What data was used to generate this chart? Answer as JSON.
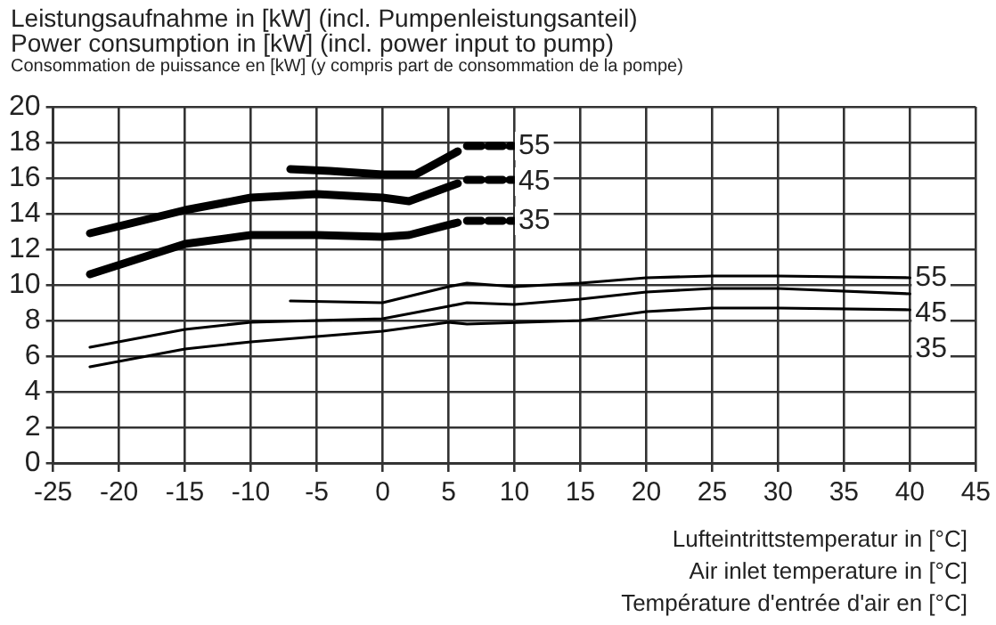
{
  "chart_data": {
    "type": "line",
    "ylabel": "Leistungsaufnahme in [kW] (incl. Pumpenleistungsanteil)\nPower consumption in [kW] (incl. power input to pump)\nConsommation de puissance en [kW] (y compris part de consommation de la pompe)",
    "xlabel": "Lufteintrittstemperatur in [°C]\nAir inlet temperature in [°C]\nTempérature d'entrée d'air en [°C]",
    "xlim": [
      -25,
      45
    ],
    "xticks": [
      -25,
      -20,
      -15,
      -10,
      -5,
      0,
      5,
      10,
      15,
      20,
      25,
      30,
      35,
      40,
      45
    ],
    "ylim": [
      0,
      20
    ],
    "yticks": [
      0,
      2,
      4,
      6,
      8,
      10,
      12,
      14,
      16,
      18,
      20
    ],
    "grid": true,
    "legend": false,
    "marker": "none",
    "line_style": "solid",
    "series": [
      {
        "color": "#000000",
        "x": [
          -7,
          -4,
          0,
          2.5,
          4,
          5.7
        ],
        "values": [
          16.5,
          16.4,
          16.2,
          16.2,
          16.8,
          17.5
        ]
      },
      {
        "color": "#000000",
        "x": [
          -22.2,
          -15,
          -10,
          -5,
          0,
          2,
          5.7
        ],
        "values": [
          12.9,
          14.2,
          14.9,
          15.1,
          14.9,
          14.7,
          15.7
        ]
      },
      {
        "color": "#000000",
        "x": [
          -22.2,
          -15,
          -10,
          -5,
          0,
          2,
          5.7
        ],
        "values": [
          10.6,
          12.3,
          12.8,
          12.8,
          12.7,
          12.8,
          13.5
        ]
      },
      {
        "name": "55",
        "color": "#000000",
        "line_style": "dashed",
        "x": [
          6.4,
          9.9
        ],
        "values": [
          17.8,
          17.8
        ]
      },
      {
        "name": "45",
        "color": "#000000",
        "line_style": "dashed",
        "x": [
          6.4,
          9.9
        ],
        "values": [
          15.9,
          15.9
        ]
      },
      {
        "name": "35",
        "color": "#000000",
        "line_style": "dashed",
        "x": [
          6.4,
          9.9
        ],
        "values": [
          13.6,
          13.6
        ]
      },
      {
        "name": "55",
        "color": "#000000",
        "x": [
          -7,
          0,
          5,
          6.4,
          10,
          15,
          20,
          25,
          30,
          40
        ],
        "values": [
          9.1,
          9.0,
          9.9,
          10.1,
          9.9,
          10.1,
          10.4,
          10.5,
          10.5,
          10.4
        ]
      },
      {
        "name": "45",
        "color": "#000000",
        "x": [
          -22.2,
          -15,
          -10,
          -5,
          0,
          5,
          6.4,
          10,
          15,
          20,
          25,
          30,
          40
        ],
        "values": [
          6.5,
          7.5,
          7.9,
          8.0,
          8.1,
          8.8,
          9.0,
          8.9,
          9.2,
          9.6,
          9.8,
          9.8,
          9.5
        ]
      },
      {
        "name": "35",
        "color": "#000000",
        "x": [
          -22.2,
          -15,
          -10,
          -5,
          0,
          5,
          6.4,
          15,
          20,
          25,
          30,
          40
        ],
        "values": [
          5.4,
          6.4,
          6.8,
          7.1,
          7.4,
          7.9,
          7.8,
          8.0,
          8.5,
          8.7,
          8.7,
          8.6
        ]
      }
    ]
  }
}
